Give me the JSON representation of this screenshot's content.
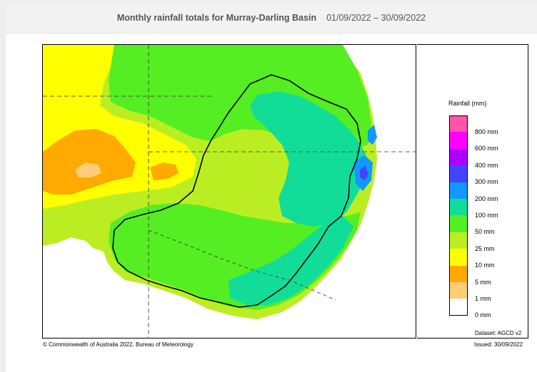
{
  "header": {
    "title": "Monthly rainfall totals for Murray-Darling Basin",
    "date_range": "01/09/2022 – 30/09/2022"
  },
  "legend": {
    "title": "Rainfall (mm)",
    "items": [
      {
        "label": "800 mm",
        "color": "#ff55aa"
      },
      {
        "label": "600 mm",
        "color": "#ff00ff"
      },
      {
        "label": "400 mm",
        "color": "#aa00ff"
      },
      {
        "label": "300 mm",
        "color": "#4444ff"
      },
      {
        "label": "200 mm",
        "color": "#1199ff"
      },
      {
        "label": "100 mm",
        "color": "#11dd99"
      },
      {
        "label": "50 mm",
        "color": "#55ee22"
      },
      {
        "label": "25 mm",
        "color": "#bbee22"
      },
      {
        "label": "10 mm",
        "color": "#ffff00"
      },
      {
        "label": "5 mm",
        "color": "#ffaa00"
      },
      {
        "label": "1 mm",
        "color": "#ffcc77"
      },
      {
        "label": "0 mm",
        "color": "#ffffff"
      }
    ]
  },
  "dataset": "Dataset: AGCD v2",
  "footer": {
    "copyright": "© Commonwealth of Australia 2022, Bureau of Meteorology",
    "issued": "Issued: 30/09/2022"
  }
}
